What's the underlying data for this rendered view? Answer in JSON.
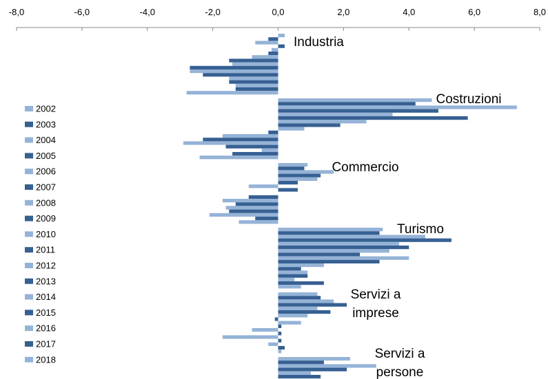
{
  "chart_data": {
    "type": "hbar",
    "categories": [
      "Industria",
      "Costruzioni",
      "Commercio",
      "Turismo",
      "Servizi a imprese",
      "Servizi a persone"
    ],
    "xlim": [
      -8,
      8
    ],
    "xticks": [
      {
        "value": -8,
        "label": "-8,0"
      },
      {
        "value": -6,
        "label": "-6,0"
      },
      {
        "value": -4,
        "label": "-4,0"
      },
      {
        "value": -2,
        "label": "-2,0"
      },
      {
        "value": 0,
        "label": "0,0"
      },
      {
        "value": 2,
        "label": "2,0"
      },
      {
        "value": 4,
        "label": "4,0"
      },
      {
        "value": 6,
        "label": "6,0"
      },
      {
        "value": 8,
        "label": "8,0"
      }
    ],
    "legend": "left",
    "series": [
      {
        "name": "2002",
        "color": "#95b3d7",
        "values": [
          0.2,
          4.7,
          0.9,
          3.2,
          1.2,
          2.2
        ]
      },
      {
        "name": "2003",
        "color": "#376092",
        "values": [
          -0.3,
          4.2,
          0.8,
          3.1,
          1.3,
          1.4
        ]
      },
      {
        "name": "2004",
        "color": "#95b3d7",
        "values": [
          -0.7,
          7.3,
          1.7,
          4.5,
          1.7,
          3.0
        ]
      },
      {
        "name": "2005",
        "color": "#376092",
        "values": [
          0.2,
          4.9,
          1.3,
          5.3,
          2.1,
          2.1
        ]
      },
      {
        "name": "2006",
        "color": "#95b3d7",
        "values": [
          -0.2,
          3.5,
          1.2,
          3.7,
          1.2,
          1.0
        ]
      },
      {
        "name": "2007",
        "color": "#376092",
        "values": [
          -0.3,
          5.8,
          0.6,
          4.0,
          1.6,
          1.3
        ]
      },
      {
        "name": "2008",
        "color": "#95b3d7",
        "values": [
          -0.8,
          2.7,
          -0.9,
          3.4,
          0.9,
          null
        ]
      },
      {
        "name": "2009",
        "color": "#376092",
        "values": [
          -1.5,
          1.9,
          0.6,
          2.5,
          -0.1,
          null
        ]
      },
      {
        "name": "2010",
        "color": "#95b3d7",
        "values": [
          -1.4,
          0.8,
          0.0,
          4.0,
          0.7,
          null
        ]
      },
      {
        "name": "2011",
        "color": "#376092",
        "values": [
          -2.7,
          -0.3,
          -0.9,
          3.1,
          0.1,
          null
        ]
      },
      {
        "name": "2012",
        "color": "#95b3d7",
        "values": [
          -2.7,
          -1.7,
          -1.7,
          1.4,
          -0.8,
          null
        ]
      },
      {
        "name": "2013",
        "color": "#376092",
        "values": [
          -2.3,
          -2.3,
          -1.3,
          0.7,
          0.1,
          null
        ]
      },
      {
        "name": "2014",
        "color": "#95b3d7",
        "values": [
          -1.5,
          -2.9,
          -1.6,
          0.9,
          -1.7,
          null
        ]
      },
      {
        "name": "2015",
        "color": "#376092",
        "values": [
          -1.5,
          -1.6,
          -1.5,
          0.9,
          0.1,
          null
        ]
      },
      {
        "name": "2016",
        "color": "#95b3d7",
        "values": [
          -1.3,
          -0.5,
          -2.1,
          0.5,
          -0.3,
          null
        ]
      },
      {
        "name": "2017",
        "color": "#376092",
        "values": [
          -1.3,
          -1.4,
          -0.7,
          1.4,
          0.2,
          null
        ]
      },
      {
        "name": "2018",
        "color": "#95b3d7",
        "values": [
          -2.8,
          -2.4,
          -1.2,
          0.7,
          0.1,
          null
        ]
      }
    ]
  }
}
